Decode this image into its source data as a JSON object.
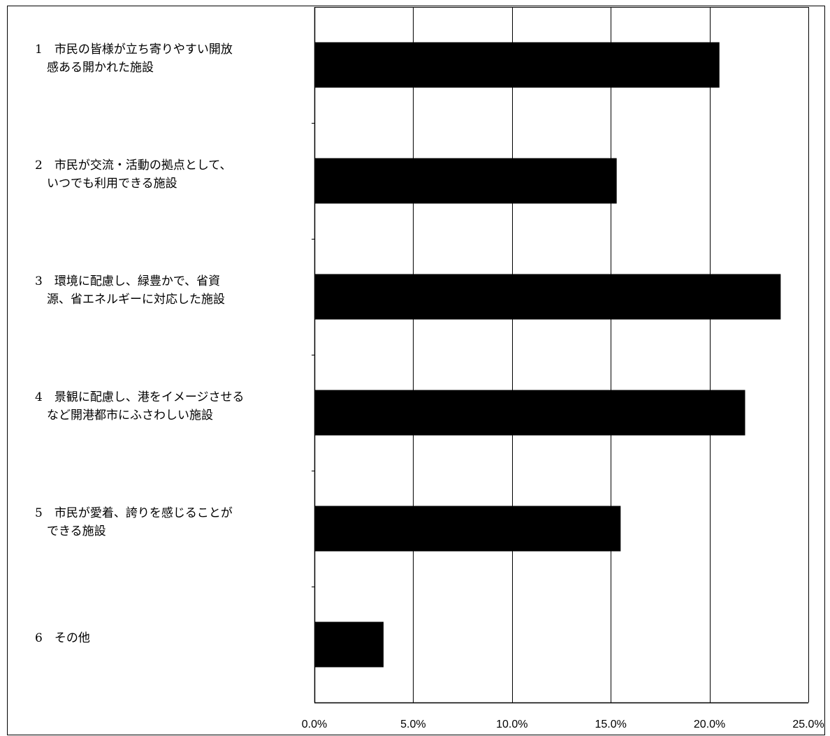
{
  "chart_data": {
    "type": "bar",
    "orientation": "horizontal",
    "categories": [
      [
        "1　市民の皆様が立ち寄りやすい開放",
        "　感ある開かれた施設"
      ],
      [
        "2　市民が交流・活動の拠点として、",
        "　いつでも利用できる施設"
      ],
      [
        "3　環境に配慮し、緑豊かで、省資",
        "　源、省エネルギーに対応した施設"
      ],
      [
        "4　景観に配慮し、港をイメージさせる",
        "　など開港都市にふさわしい施設"
      ],
      [
        "5　市民が愛着、誇りを感じることが",
        "　できる施設"
      ],
      [
        "6　その他"
      ]
    ],
    "values": [
      20.5,
      15.3,
      23.6,
      21.8,
      15.5,
      3.5
    ],
    "xlim": [
      0,
      25
    ],
    "xticks": [
      0,
      5,
      10,
      15,
      20,
      25
    ],
    "xtick_labels": [
      "0.0%",
      "5.0%",
      "10.0%",
      "15.0%",
      "20.0%",
      "25.0%"
    ],
    "bar_color": "#000000",
    "grid": true,
    "title": "",
    "xlabel": "",
    "ylabel": ""
  }
}
